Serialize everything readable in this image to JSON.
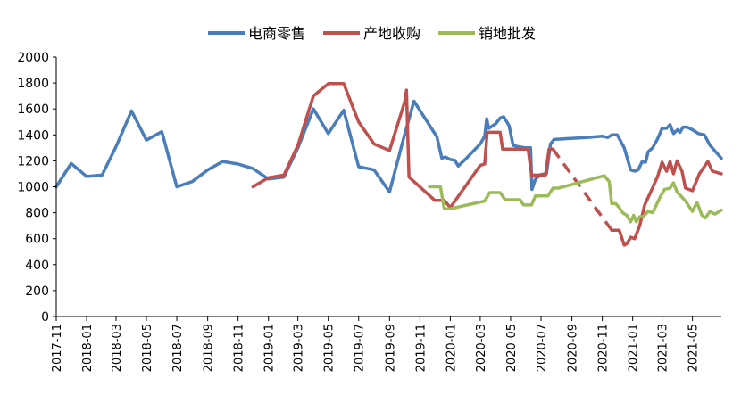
{
  "chart_data": {
    "type": "line",
    "title": "",
    "xlabel": "",
    "ylabel": "",
    "ylim": [
      0,
      2000
    ],
    "yticks": [
      0,
      200,
      400,
      600,
      800,
      1000,
      1200,
      1400,
      1600,
      1800,
      2000
    ],
    "xticks": [
      "2017-11",
      "2018-01",
      "2018-03",
      "2018-05",
      "2018-07",
      "2018-09",
      "2018-11",
      "2019-01",
      "2019-03",
      "2019-05",
      "2019-07",
      "2019-09",
      "2019-11",
      "2020-01",
      "2020-03",
      "2020-05",
      "2020-07",
      "2020-09",
      "2020-11",
      "2021-01",
      "2021-03",
      "2021-05"
    ],
    "x_range": [
      "2017-11-01",
      "2021-06-28"
    ],
    "grid": false,
    "legend_position": "top-center",
    "series": [
      {
        "name": "电商零售",
        "color": "#4a7ebb",
        "points": [
          [
            "2017-11-01",
            1000
          ],
          [
            "2017-12-01",
            1180
          ],
          [
            "2018-01-01",
            1080
          ],
          [
            "2018-02-01",
            1090
          ],
          [
            "2018-03-01",
            1310
          ],
          [
            "2018-04-01",
            1585
          ],
          [
            "2018-05-01",
            1360
          ],
          [
            "2018-06-01",
            1425
          ],
          [
            "2018-07-01",
            1000
          ],
          [
            "2018-08-01",
            1040
          ],
          [
            "2018-09-01",
            1130
          ],
          [
            "2018-10-01",
            1195
          ],
          [
            "2018-11-01",
            1175
          ],
          [
            "2018-12-01",
            1140
          ],
          [
            "2019-01-01",
            1060
          ],
          [
            "2019-02-01",
            1075
          ],
          [
            "2019-03-01",
            1300
          ],
          [
            "2019-04-01",
            1600
          ],
          [
            "2019-05-01",
            1410
          ],
          [
            "2019-06-01",
            1590
          ],
          [
            "2019-07-01",
            1155
          ],
          [
            "2019-08-01",
            1130
          ],
          [
            "2019-09-01",
            960
          ],
          [
            "2019-10-01",
            1400
          ],
          [
            "2019-10-20",
            1660
          ],
          [
            "2019-12-05",
            1385
          ],
          [
            "2019-12-15",
            1220
          ],
          [
            "2019-12-22",
            1230
          ],
          [
            "2020-01-01",
            1210
          ],
          [
            "2020-01-10",
            1205
          ],
          [
            "2020-01-17",
            1160
          ],
          [
            "2020-02-01",
            1215
          ],
          [
            "2020-03-01",
            1330
          ],
          [
            "2020-03-10",
            1390
          ],
          [
            "2020-03-14",
            1525
          ],
          [
            "2020-03-18",
            1450
          ],
          [
            "2020-04-01",
            1485
          ],
          [
            "2020-04-10",
            1530
          ],
          [
            "2020-04-17",
            1540
          ],
          [
            "2020-04-28",
            1470
          ],
          [
            "2020-05-06",
            1320
          ],
          [
            "2020-05-15",
            1310
          ],
          [
            "2020-06-01",
            1300
          ],
          [
            "2020-06-10",
            1300
          ],
          [
            "2020-06-13",
            980
          ],
          [
            "2020-06-20",
            1060
          ],
          [
            "2020-07-01",
            1095
          ],
          [
            "2020-07-12",
            1100
          ],
          [
            "2020-07-20",
            1330
          ],
          [
            "2020-07-27",
            1365
          ],
          [
            "2020-08-15",
            1370
          ],
          [
            "2020-10-01",
            1380
          ],
          [
            "2020-11-01",
            1390
          ],
          [
            "2020-11-12",
            1380
          ],
          [
            "2020-11-20",
            1400
          ],
          [
            "2020-12-01",
            1400
          ],
          [
            "2020-12-15",
            1300
          ],
          [
            "2020-12-28",
            1130
          ],
          [
            "2021-01-05",
            1120
          ],
          [
            "2021-01-12",
            1130
          ],
          [
            "2021-01-20",
            1195
          ],
          [
            "2021-01-27",
            1190
          ],
          [
            "2021-02-01",
            1270
          ],
          [
            "2021-02-10",
            1300
          ],
          [
            "2021-02-20",
            1370
          ],
          [
            "2021-03-01",
            1450
          ],
          [
            "2021-03-10",
            1450
          ],
          [
            "2021-03-17",
            1480
          ],
          [
            "2021-03-24",
            1410
          ],
          [
            "2021-04-01",
            1440
          ],
          [
            "2021-04-06",
            1420
          ],
          [
            "2021-04-12",
            1460
          ],
          [
            "2021-04-20",
            1460
          ],
          [
            "2021-05-01",
            1440
          ],
          [
            "2021-05-13",
            1410
          ],
          [
            "2021-05-25",
            1400
          ],
          [
            "2021-06-05",
            1320
          ],
          [
            "2021-06-28",
            1220
          ]
        ]
      },
      {
        "name": "产地收购",
        "color": "#c0504d",
        "points": [
          [
            "2018-12-01",
            1000
          ],
          [
            "2019-01-01",
            1070
          ],
          [
            "2019-02-01",
            1090
          ],
          [
            "2019-03-01",
            1320
          ],
          [
            "2019-04-01",
            1700
          ],
          [
            "2019-05-01",
            1795
          ],
          [
            "2019-06-01",
            1795
          ],
          [
            "2019-07-01",
            1500
          ],
          [
            "2019-08-01",
            1330
          ],
          [
            "2019-09-01",
            1280
          ],
          [
            "2019-10-01",
            1650
          ],
          [
            "2019-10-05",
            1745
          ],
          [
            "2019-10-10",
            1075
          ],
          [
            "2019-12-01",
            895
          ],
          [
            "2019-12-20",
            895
          ],
          [
            "2020-01-01",
            840
          ],
          [
            "2020-03-01",
            1165
          ],
          [
            "2020-03-10",
            1175
          ],
          [
            "2020-03-15",
            1420
          ],
          [
            "2020-04-10",
            1420
          ],
          [
            "2020-04-15",
            1290
          ],
          [
            "2020-05-20",
            1290
          ],
          [
            "2020-06-05",
            1290
          ],
          [
            "2020-06-12",
            1090
          ],
          [
            "2020-07-10",
            1090
          ],
          [
            "2020-07-17",
            1290
          ],
          [
            "2020-07-25",
            1290
          ],
          [
            "2020-11-20",
            665
          ],
          [
            "2020-12-05",
            665
          ],
          [
            "2020-12-15",
            550
          ],
          [
            "2020-12-20",
            560
          ],
          [
            "2020-12-28",
            610
          ],
          [
            "2021-01-05",
            600
          ],
          [
            "2021-01-15",
            700
          ],
          [
            "2021-01-25",
            860
          ],
          [
            "2021-02-05",
            950
          ],
          [
            "2021-02-20",
            1080
          ],
          [
            "2021-03-01",
            1190
          ],
          [
            "2021-03-10",
            1120
          ],
          [
            "2021-03-17",
            1195
          ],
          [
            "2021-03-24",
            1100
          ],
          [
            "2021-03-31",
            1200
          ],
          [
            "2021-04-10",
            1120
          ],
          [
            "2021-04-17",
            990
          ],
          [
            "2021-05-01",
            970
          ],
          [
            "2021-05-15",
            1100
          ],
          [
            "2021-06-01",
            1195
          ],
          [
            "2021-06-10",
            1120
          ],
          [
            "2021-06-28",
            1100
          ]
        ],
        "dashed_from": "2020-07-25",
        "dashed_to": "2020-11-20"
      },
      {
        "name": "销地批发",
        "color": "#9bbb59",
        "points": [
          [
            "2019-11-20",
            1000
          ],
          [
            "2019-12-12",
            1000
          ],
          [
            "2019-12-20",
            830
          ],
          [
            "2020-01-01",
            830
          ],
          [
            "2020-03-10",
            890
          ],
          [
            "2020-03-20",
            955
          ],
          [
            "2020-04-10",
            955
          ],
          [
            "2020-04-20",
            900
          ],
          [
            "2020-05-20",
            900
          ],
          [
            "2020-05-27",
            860
          ],
          [
            "2020-06-12",
            860
          ],
          [
            "2020-06-20",
            930
          ],
          [
            "2020-07-15",
            930
          ],
          [
            "2020-07-25",
            990
          ],
          [
            "2020-08-05",
            990
          ],
          [
            "2020-11-05",
            1085
          ],
          [
            "2020-11-15",
            1040
          ],
          [
            "2020-11-20",
            870
          ],
          [
            "2020-11-28",
            870
          ],
          [
            "2020-12-05",
            840
          ],
          [
            "2020-12-12",
            800
          ],
          [
            "2020-12-20",
            780
          ],
          [
            "2020-12-28",
            730
          ],
          [
            "2021-01-03",
            780
          ],
          [
            "2021-01-08",
            730
          ],
          [
            "2021-01-15",
            770
          ],
          [
            "2021-01-22",
            770
          ],
          [
            "2021-02-01",
            810
          ],
          [
            "2021-02-10",
            800
          ],
          [
            "2021-02-25",
            920
          ],
          [
            "2021-03-06",
            980
          ],
          [
            "2021-03-17",
            990
          ],
          [
            "2021-03-24",
            1030
          ],
          [
            "2021-03-31",
            960
          ],
          [
            "2021-04-10",
            920
          ],
          [
            "2021-04-17",
            890
          ],
          [
            "2021-05-01",
            810
          ],
          [
            "2021-05-10",
            880
          ],
          [
            "2021-05-20",
            780
          ],
          [
            "2021-05-27",
            760
          ],
          [
            "2021-06-05",
            810
          ],
          [
            "2021-06-15",
            790
          ],
          [
            "2021-06-28",
            820
          ]
        ]
      }
    ]
  }
}
